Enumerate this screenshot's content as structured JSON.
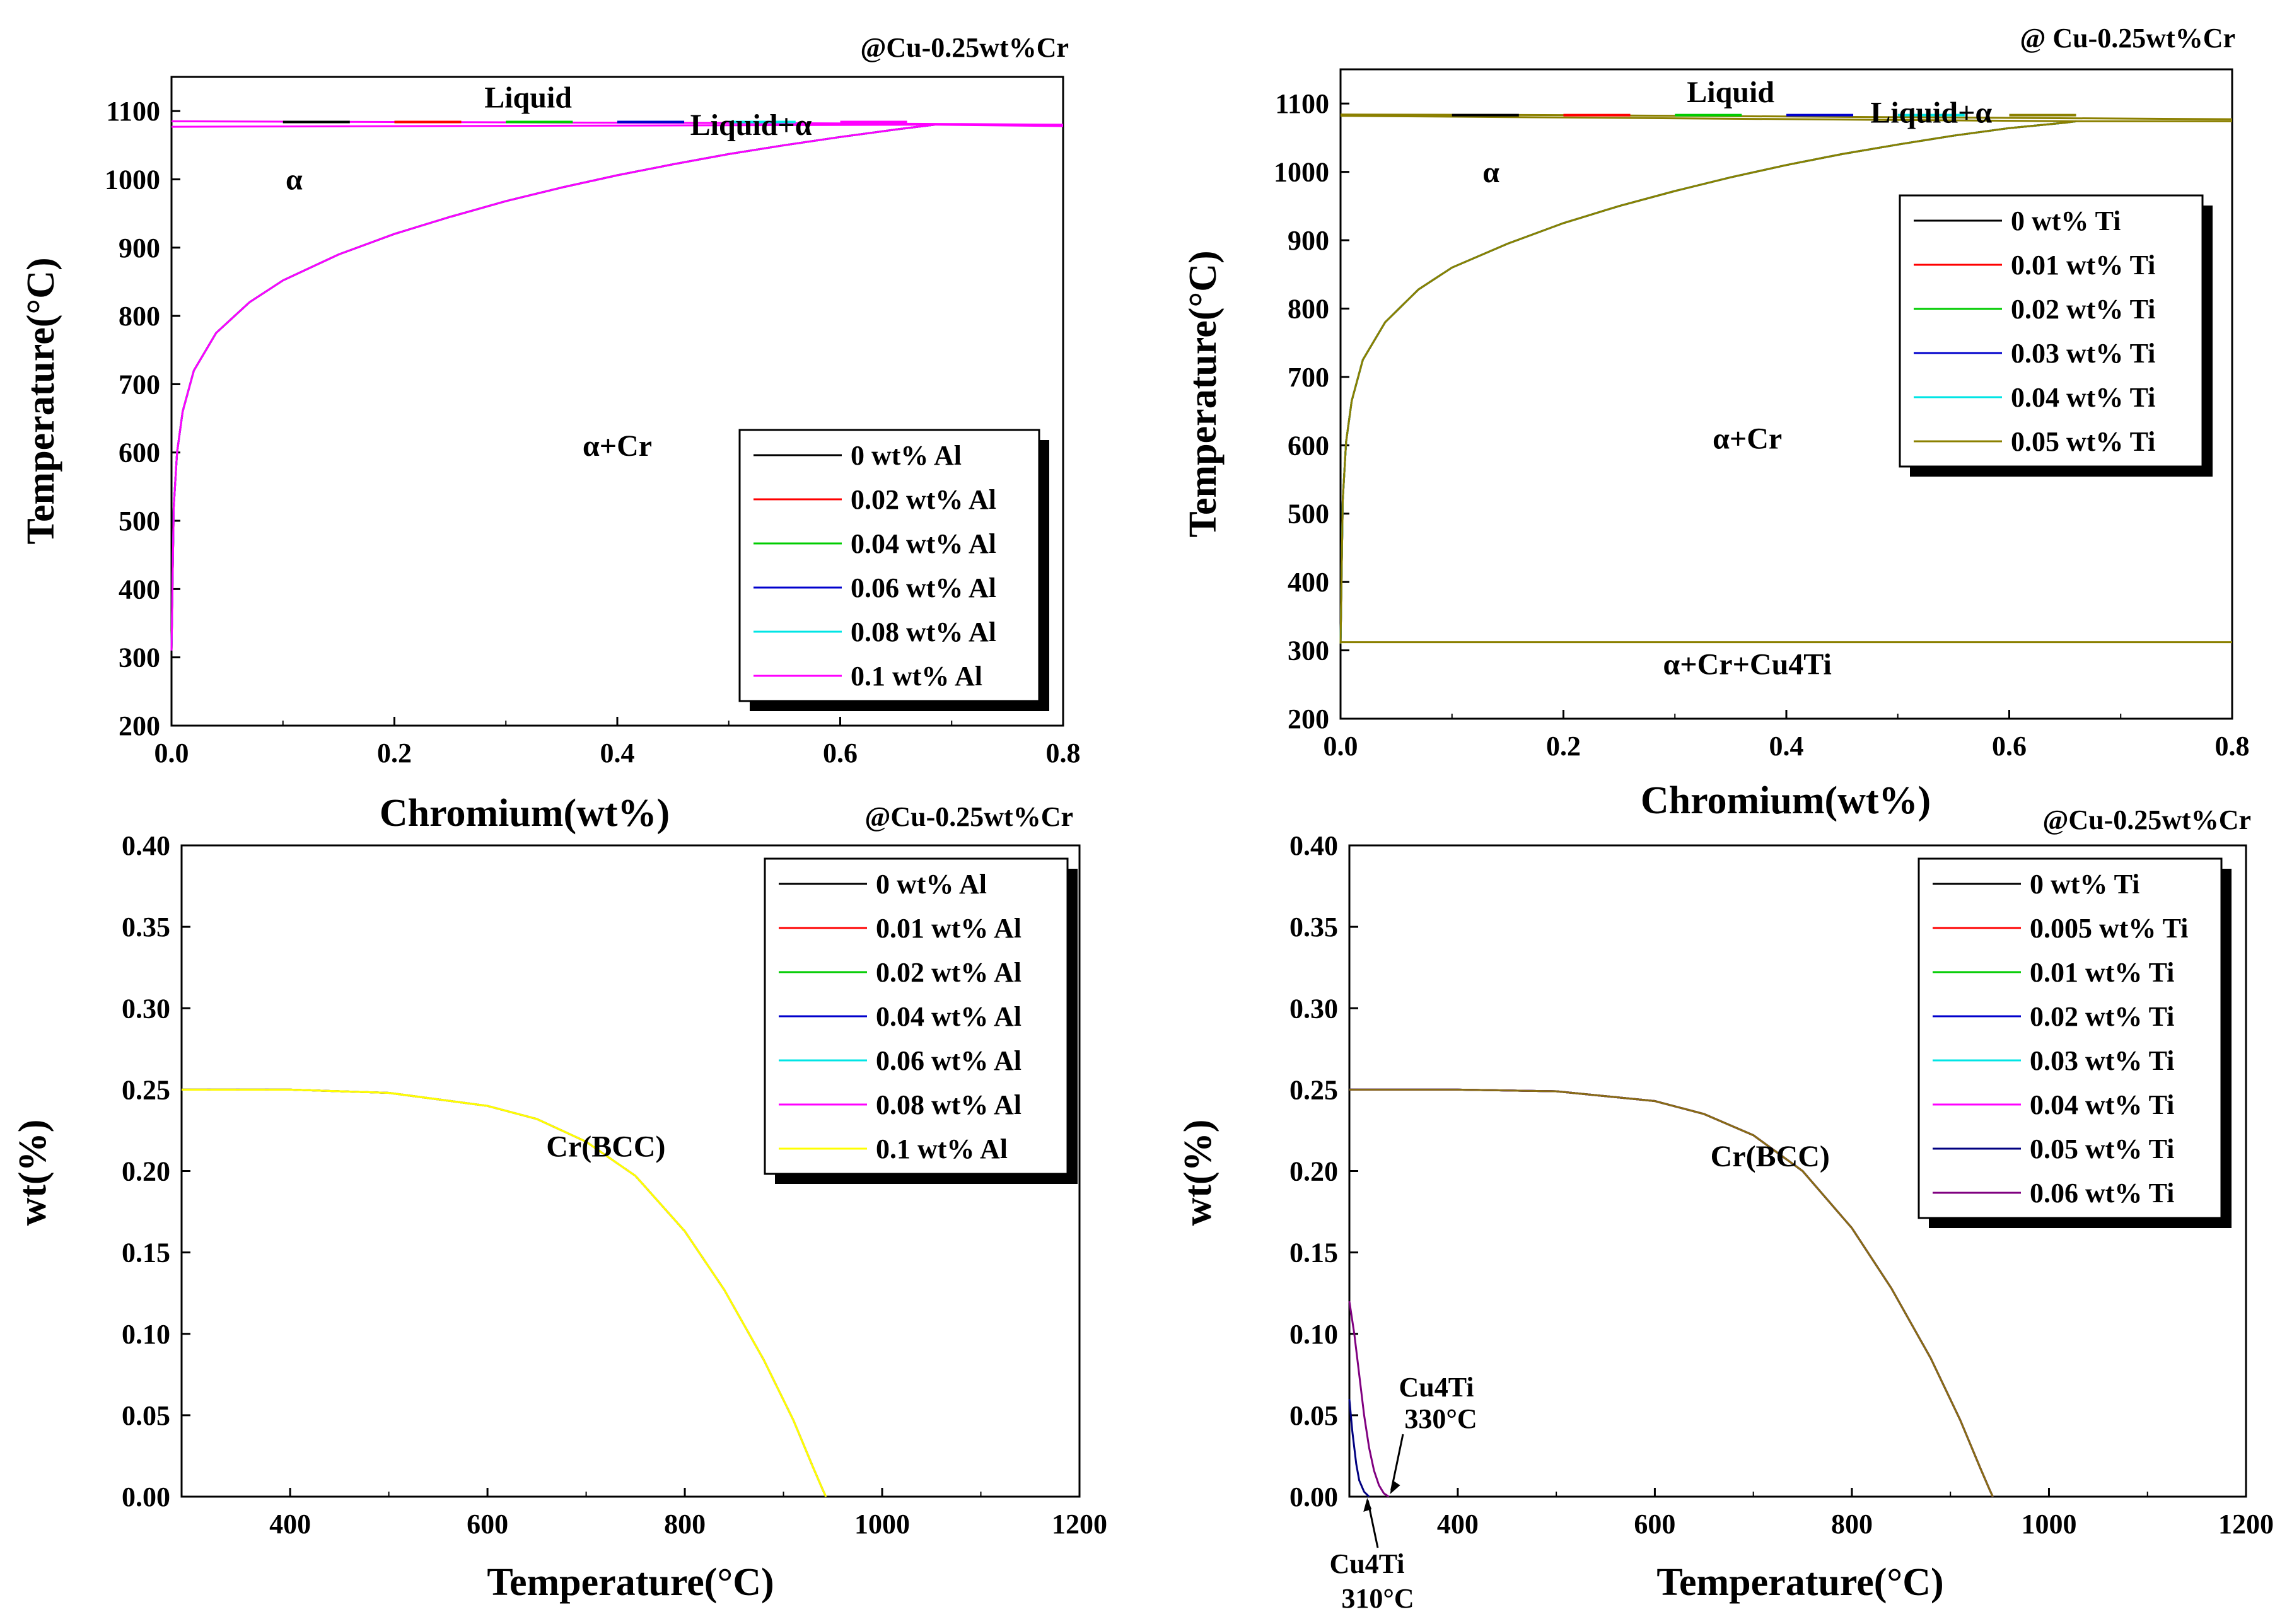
{
  "chart_data": [
    {
      "id": "a",
      "type": "line",
      "annotation": "@Cu-0.25wt%Cr",
      "xlabel": "Chromium(wt%)",
      "ylabel": "Temperature(°C)",
      "xlim": [
        0.0,
        0.8
      ],
      "ylim": [
        200,
        1150
      ],
      "xticks": [
        "0.0",
        "0.2",
        "0.4",
        "0.6",
        "0.8"
      ],
      "yticks": [
        "200",
        "300",
        "400",
        "500",
        "600",
        "700",
        "800",
        "900",
        "1000",
        "1100"
      ],
      "region_labels": [
        {
          "text": "Liquid",
          "x": 0.32,
          "y": 1105
        },
        {
          "text": "Liquid+α",
          "x": 0.52,
          "y": 1065
        },
        {
          "text": "α",
          "x": 0.11,
          "y": 985
        },
        {
          "text": "α+Cr",
          "x": 0.4,
          "y": 595
        }
      ],
      "legend": [
        "0 wt% Al",
        "0.02 wt% Al",
        "0.04 wt% Al",
        "0.06 wt% Al",
        "0.08 wt% Al",
        "0.1 wt% Al"
      ],
      "colors": [
        "#000000",
        "#ff0000",
        "#00cc00",
        "#0000cc",
        "#00e5e5",
        "#ff00ff"
      ],
      "solvus": {
        "x": [
          0.0,
          0.002,
          0.005,
          0.01,
          0.02,
          0.04,
          0.07,
          0.1,
          0.15,
          0.2,
          0.25,
          0.3,
          0.35,
          0.4,
          0.45,
          0.5,
          0.55,
          0.6,
          0.65,
          0.685
        ],
        "y": [
          310,
          520,
          600,
          660,
          720,
          775,
          820,
          852,
          890,
          920,
          945,
          968,
          988,
          1006,
          1022,
          1037,
          1050,
          1062,
          1073,
          1080
        ]
      },
      "liquidus": {
        "x": [
          0.0,
          0.2,
          0.4,
          0.6,
          0.7,
          0.8
        ],
        "y": [
          1085,
          1084,
          1083,
          1082,
          1081,
          1080
        ]
      },
      "solidus": {
        "x": [
          0.0,
          0.685,
          0.8
        ],
        "y": [
          1077,
          1080,
          1078
        ]
      },
      "extra_line": null
    },
    {
      "id": "b",
      "type": "line",
      "annotation": "@ Cu-0.25wt%Cr",
      "xlabel": "Chromium(wt%)",
      "ylabel": "Temperature(°C)",
      "xlim": [
        0.0,
        0.8
      ],
      "ylim": [
        200,
        1150
      ],
      "xticks": [
        "0.0",
        "0.2",
        "0.4",
        "0.6",
        "0.8"
      ],
      "yticks": [
        "200",
        "300",
        "400",
        "500",
        "600",
        "700",
        "800",
        "900",
        "1000",
        "1100"
      ],
      "region_labels": [
        {
          "text": "Liquid",
          "x": 0.35,
          "y": 1102
        },
        {
          "text": "Liquid+α",
          "x": 0.53,
          "y": 1072
        },
        {
          "text": "α",
          "x": 0.135,
          "y": 985
        },
        {
          "text": "α+Cr",
          "x": 0.365,
          "y": 595
        },
        {
          "text": "α+Cr+Cu4Ti",
          "x": 0.365,
          "y": 265
        }
      ],
      "legend": [
        "0 wt% Ti",
        "0.01 wt% Ti",
        "0.02 wt% Ti",
        "0.03 wt% Ti",
        "0.04 wt% Ti",
        "0.05 wt% Ti"
      ],
      "colors": [
        "#000000",
        "#ff0000",
        "#00cc00",
        "#0000cc",
        "#00e5e5",
        "#8b8000"
      ],
      "solvus": {
        "x": [
          0.0,
          0.002,
          0.005,
          0.01,
          0.02,
          0.04,
          0.07,
          0.1,
          0.15,
          0.2,
          0.25,
          0.3,
          0.35,
          0.4,
          0.45,
          0.5,
          0.55,
          0.6,
          0.65,
          0.66
        ],
        "y": [
          310,
          520,
          605,
          665,
          725,
          780,
          828,
          860,
          895,
          925,
          950,
          972,
          992,
          1010,
          1026,
          1040,
          1053,
          1064,
          1072,
          1074
        ]
      },
      "liquidus": {
        "x": [
          0.0,
          0.2,
          0.4,
          0.6,
          0.8
        ],
        "y": [
          1084,
          1083,
          1081,
          1079,
          1077
        ]
      },
      "solidus": {
        "x": [
          0.0,
          0.66,
          0.8
        ],
        "y": [
          1082,
          1074,
          1074
        ]
      },
      "extra_line": {
        "x": [
          0.0,
          0.8
        ],
        "y": [
          312,
          312
        ]
      }
    },
    {
      "id": "c",
      "type": "line",
      "annotation": "@Cu-0.25wt%Cr",
      "xlabel": "Temperature(°C)",
      "ylabel": "wt(%)",
      "xlim": [
        290,
        1200
      ],
      "ylim": [
        0.0,
        0.4
      ],
      "xticks": [
        "400",
        "600",
        "800",
        "1000",
        "1200"
      ],
      "yticks": [
        "0.00",
        "0.05",
        "0.10",
        "0.15",
        "0.20",
        "0.25",
        "0.30",
        "0.35",
        "0.40"
      ],
      "region_labels": [
        {
          "text": "Cr(BCC)",
          "x": 720,
          "y": 0.209
        }
      ],
      "legend": [
        "0 wt% Al",
        "0.01 wt% Al",
        "0.02 wt% Al",
        "0.04 wt% Al",
        "0.06 wt% Al",
        "0.08 wt% Al",
        "0.1 wt% Al"
      ],
      "colors": [
        "#000000",
        "#ff0000",
        "#00cc00",
        "#0000cc",
        "#00e5e5",
        "#ff00ff",
        "#ffff00"
      ],
      "curve": {
        "x": [
          290,
          400,
          500,
          600,
          650,
          700,
          750,
          800,
          840,
          880,
          910,
          930,
          940,
          943
        ],
        "y": [
          0.25,
          0.25,
          0.248,
          0.24,
          0.232,
          0.218,
          0.197,
          0.163,
          0.127,
          0.084,
          0.047,
          0.018,
          0.004,
          0.0
        ]
      },
      "annotations": []
    },
    {
      "id": "d",
      "type": "line",
      "annotation": "@Cu-0.25wt%Cr",
      "xlabel": "Temperature(°C)",
      "ylabel": "wt(%)",
      "xlim": [
        290,
        1200
      ],
      "ylim": [
        0.0,
        0.4
      ],
      "xticks": [
        "400",
        "600",
        "800",
        "1000",
        "1200"
      ],
      "yticks": [
        "0.00",
        "0.05",
        "0.10",
        "0.15",
        "0.20",
        "0.25",
        "0.30",
        "0.35",
        "0.40"
      ],
      "region_labels": [
        {
          "text": "Cr(BCC)",
          "x": 717,
          "y": 0.203
        }
      ],
      "legend": [
        "0 wt% Ti",
        "0.005 wt% Ti",
        "0.01 wt% Ti",
        "0.02 wt% Ti",
        "0.03 wt% Ti",
        "0.04 wt% Ti",
        "0.05 wt% Ti",
        "0.06 wt% Ti"
      ],
      "colors": [
        "#000000",
        "#ff0000",
        "#00cc00",
        "#0000cc",
        "#00e5e5",
        "#ff00ff",
        "#000080",
        "#800080"
      ],
      "curve": {
        "x": [
          290,
          400,
          500,
          600,
          650,
          700,
          750,
          800,
          840,
          880,
          910,
          930,
          940,
          943
        ],
        "y": [
          0.25,
          0.25,
          0.249,
          0.243,
          0.235,
          0.222,
          0.2,
          0.165,
          0.128,
          0.085,
          0.047,
          0.018,
          0.004,
          0.0
        ]
      },
      "extra_curves": [
        {
          "color": "#800080",
          "x": [
            290,
            295,
            300,
            305,
            310,
            315,
            320,
            325,
            330
          ],
          "y": [
            0.12,
            0.1,
            0.075,
            0.05,
            0.03,
            0.016,
            0.007,
            0.002,
            0.0
          ]
        },
        {
          "color": "#000080",
          "x": [
            290,
            293,
            297,
            300,
            305,
            310
          ],
          "y": [
            0.06,
            0.04,
            0.02,
            0.01,
            0.003,
            0.0
          ]
        }
      ],
      "annotations": [
        {
          "line1": "Cu4Ti",
          "line2": "330°C",
          "x": 330,
          "y": 0.0
        },
        {
          "line1": "Cu4Ti",
          "line2": "310°C",
          "x": 310,
          "y": 0.0
        }
      ]
    }
  ]
}
